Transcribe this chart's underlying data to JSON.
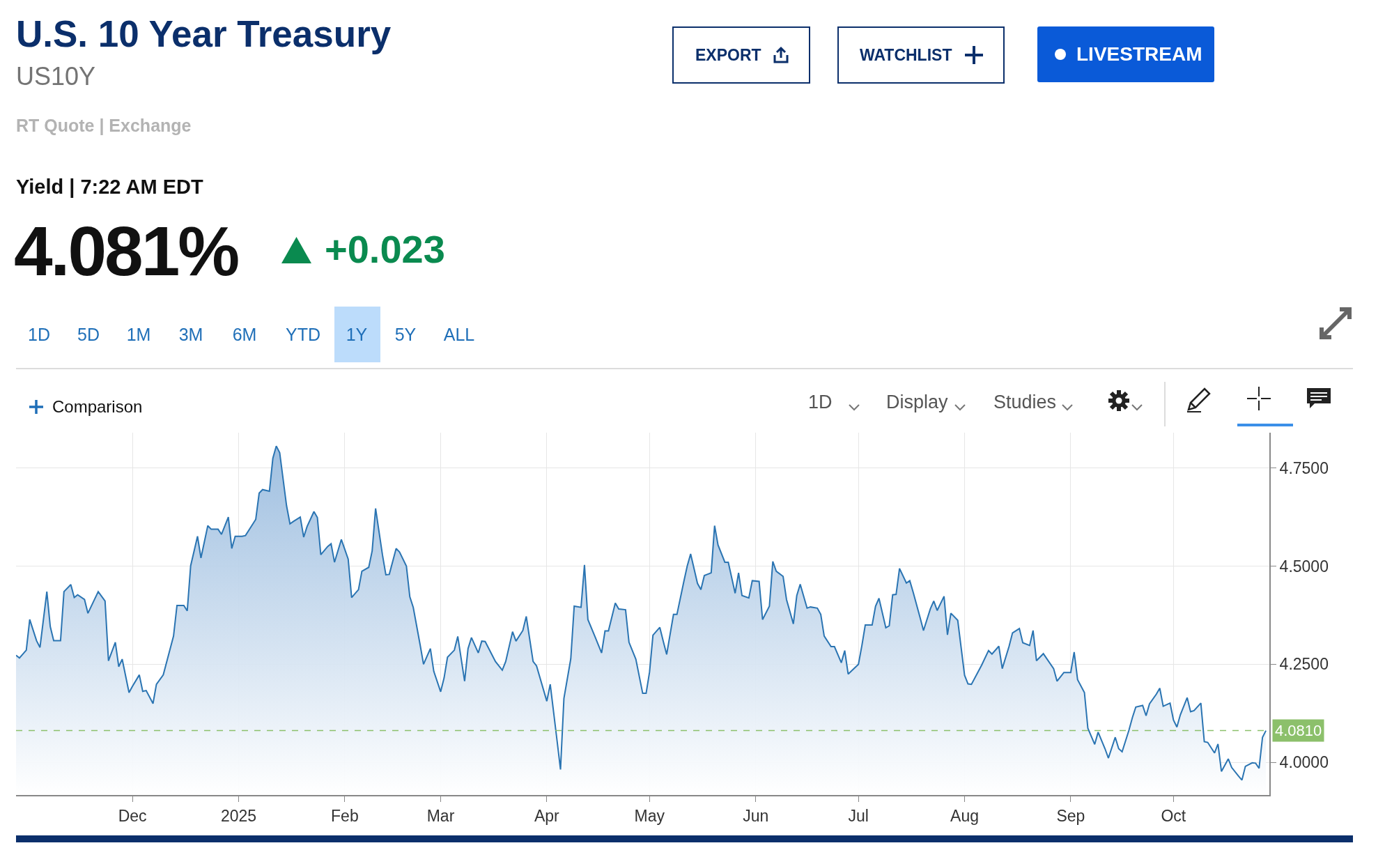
{
  "chart_data": {
    "type": "area",
    "title": "U.S. 10 Year Treasury",
    "subtitle": "US10Y",
    "annotations": [
      "RT Quote | Exchange",
      "Yield | 7:22 AM EDT",
      "4.081%",
      "+0.023",
      "EXPORT",
      "WATCHLIST",
      "LIVESTREAM",
      "1D",
      "5D",
      "1M",
      "3M",
      "6M",
      "YTD",
      "1Y",
      "5Y",
      "ALL",
      "Comparison",
      "1D",
      "Display",
      "Studies"
    ],
    "x": [
      "2024-10-28",
      "2024-10-29",
      "2024-10-31",
      "2024-11-01",
      "2024-11-03",
      "2024-11-04",
      "2024-11-06",
      "2024-11-07",
      "2024-11-08",
      "2024-11-10",
      "2024-11-11",
      "2024-11-13",
      "2024-11-14",
      "2024-11-15",
      "2024-11-17",
      "2024-11-18",
      "2024-11-21",
      "2024-11-23",
      "2024-11-24",
      "2024-11-26",
      "2024-11-27",
      "2024-11-28",
      "2024-11-30",
      "2024-12-01",
      "2024-12-03",
      "2024-12-04",
      "2024-12-05",
      "2024-12-07",
      "2024-12-08",
      "2024-12-10",
      "2024-12-13",
      "2024-12-14",
      "2024-12-16",
      "2024-12-17",
      "2024-12-18",
      "2024-12-20",
      "2024-12-21",
      "2024-12-23",
      "2024-12-24",
      "2024-12-26",
      "2024-12-27",
      "2024-12-29",
      "2024-12-30",
      "2024-12-31",
      "2025-01-02",
      "2025-01-03",
      "2025-01-06",
      "2025-01-07",
      "2025-01-08",
      "2025-01-10",
      "2025-01-11",
      "2025-01-12",
      "2025-01-13",
      "2025-01-15",
      "2025-01-16",
      "2025-01-17",
      "2025-01-19",
      "2025-01-20",
      "2025-01-21",
      "2025-01-23",
      "2025-01-24",
      "2025-01-25",
      "2025-01-27",
      "2025-01-28",
      "2025-01-29",
      "2025-01-31",
      "2025-02-01",
      "2025-02-02",
      "2025-02-03",
      "2025-02-05",
      "2025-02-06",
      "2025-02-08",
      "2025-02-09",
      "2025-02-10",
      "2025-02-12",
      "2025-02-13",
      "2025-02-14",
      "2025-02-16",
      "2025-02-17",
      "2025-02-19",
      "2025-02-20",
      "2025-02-21",
      "2025-02-23",
      "2025-02-24",
      "2025-02-26",
      "2025-02-27",
      "2025-03-01",
      "2025-03-02",
      "2025-03-03",
      "2025-03-05",
      "2025-03-06",
      "2025-03-08",
      "2025-03-09",
      "2025-03-10",
      "2025-03-12",
      "2025-03-13",
      "2025-03-14",
      "2025-03-17",
      "2025-03-19",
      "2025-03-20",
      "2025-03-22",
      "2025-03-23",
      "2025-03-25",
      "2025-03-26",
      "2025-03-28",
      "2025-03-29",
      "2025-04-01",
      "2025-04-02",
      "2025-04-04",
      "2025-04-05",
      "2025-04-06",
      "2025-04-08",
      "2025-04-09",
      "2025-04-11",
      "2025-04-12",
      "2025-04-13",
      "2025-04-15",
      "2025-04-17",
      "2025-04-18",
      "2025-04-19",
      "2025-04-21",
      "2025-04-22",
      "2025-04-24",
      "2025-04-25",
      "2025-04-27",
      "2025-04-29",
      "2025-04-30",
      "2025-05-01",
      "2025-05-02",
      "2025-05-04",
      "2025-05-05",
      "2025-05-06",
      "2025-05-08",
      "2025-05-09",
      "2025-05-11",
      "2025-05-12",
      "2025-05-13",
      "2025-05-15",
      "2025-05-16",
      "2025-05-17",
      "2025-05-19",
      "2025-05-20",
      "2025-05-21",
      "2025-05-23",
      "2025-05-24",
      "2025-05-26",
      "2025-05-27",
      "2025-05-28",
      "2025-05-30",
      "2025-05-31",
      "2025-06-02",
      "2025-06-03",
      "2025-06-05",
      "2025-06-06",
      "2025-06-07",
      "2025-06-09",
      "2025-06-10",
      "2025-06-12",
      "2025-06-13",
      "2025-06-14",
      "2025-06-16",
      "2025-06-17",
      "2025-06-19",
      "2025-06-20",
      "2025-06-21",
      "2025-06-23",
      "2025-06-24",
      "2025-06-26",
      "2025-06-27",
      "2025-06-28",
      "2025-07-01",
      "2025-07-02",
      "2025-07-03",
      "2025-07-05",
      "2025-07-06",
      "2025-07-07",
      "2025-07-09",
      "2025-07-10",
      "2025-07-11",
      "2025-07-12",
      "2025-07-13",
      "2025-07-15",
      "2025-07-16",
      "2025-07-17",
      "2025-07-19",
      "2025-07-20",
      "2025-07-22",
      "2025-07-23",
      "2025-07-24",
      "2025-07-26",
      "2025-07-27",
      "2025-07-28",
      "2025-07-30",
      "2025-08-01",
      "2025-08-02",
      "2025-08-03",
      "2025-08-06",
      "2025-08-08",
      "2025-08-09",
      "2025-08-11",
      "2025-08-12",
      "2025-08-14",
      "2025-08-15",
      "2025-08-17",
      "2025-08-18",
      "2025-08-20",
      "2025-08-21",
      "2025-08-22",
      "2025-08-24",
      "2025-08-27",
      "2025-08-28",
      "2025-08-30",
      "2025-09-01",
      "2025-09-02",
      "2025-09-03",
      "2025-09-05",
      "2025-09-06",
      "2025-09-08",
      "2025-09-09",
      "2025-09-11",
      "2025-09-12",
      "2025-09-14",
      "2025-09-15",
      "2025-09-16",
      "2025-09-18",
      "2025-09-19",
      "2025-09-20",
      "2025-09-22",
      "2025-09-23",
      "2025-09-24",
      "2025-09-26",
      "2025-09-27",
      "2025-09-28",
      "2025-09-30",
      "2025-10-01",
      "2025-10-02",
      "2025-10-03",
      "2025-10-05",
      "2025-10-06",
      "2025-10-07",
      "2025-10-09",
      "2025-10-10",
      "2025-10-11",
      "2025-10-13",
      "2025-10-14",
      "2025-10-15",
      "2025-10-17",
      "2025-10-18",
      "2025-10-20",
      "2025-10-21",
      "2025-10-22",
      "2025-10-24",
      "2025-10-25",
      "2025-10-26",
      "2025-10-27",
      "2025-10-28"
    ],
    "series": [
      {
        "color": "#2a74b2",
        "values": [
          4.273,
          4.266,
          4.286,
          4.364,
          4.31,
          4.293,
          4.435,
          4.346,
          4.31,
          4.31,
          4.435,
          4.453,
          4.42,
          4.427,
          4.415,
          4.38,
          4.435,
          4.411,
          4.259,
          4.306,
          4.244,
          4.263,
          4.178,
          4.194,
          4.223,
          4.181,
          4.183,
          4.15,
          4.199,
          4.223,
          4.322,
          4.4,
          4.4,
          4.386,
          4.501,
          4.576,
          4.521,
          4.603,
          4.594,
          4.594,
          4.581,
          4.625,
          4.545,
          4.576,
          4.576,
          4.578,
          4.619,
          4.686,
          4.695,
          4.691,
          4.775,
          4.806,
          4.789,
          4.654,
          4.608,
          4.614,
          4.625,
          4.574,
          4.601,
          4.639,
          4.624,
          4.529,
          4.55,
          4.557,
          4.51,
          4.568,
          4.543,
          4.518,
          4.42,
          4.44,
          4.487,
          4.497,
          4.539,
          4.647,
          4.529,
          4.478,
          4.479,
          4.545,
          4.536,
          4.5,
          4.422,
          4.395,
          4.3,
          4.25,
          4.29,
          4.232,
          4.18,
          4.215,
          4.268,
          4.286,
          4.321,
          4.207,
          4.29,
          4.318,
          4.279,
          4.309,
          4.308,
          4.257,
          4.235,
          4.257,
          4.333,
          4.309,
          4.336,
          4.372,
          4.257,
          4.246,
          4.156,
          4.199,
          4.055,
          3.982,
          4.163,
          4.264,
          4.398,
          4.395,
          4.503,
          4.364,
          4.322,
          4.279,
          4.335,
          4.335,
          4.406,
          4.391,
          4.389,
          4.306,
          4.263,
          4.176,
          4.176,
          4.23,
          4.324,
          4.344,
          4.309,
          4.275,
          4.377,
          4.377,
          4.46,
          4.5,
          4.531,
          4.456,
          4.44,
          4.476,
          4.483,
          4.603,
          4.554,
          4.51,
          4.51,
          4.431,
          4.483,
          4.425,
          4.419,
          4.463,
          4.461,
          4.364,
          4.398,
          4.512,
          4.487,
          4.474,
          4.415,
          4.353,
          4.425,
          4.454,
          4.393,
          4.396,
          4.393,
          4.377,
          4.322,
          4.295,
          4.295,
          4.254,
          4.285,
          4.225,
          4.25,
          4.297,
          4.35,
          4.35,
          4.398,
          4.418,
          4.343,
          4.348,
          4.427,
          4.428,
          4.494,
          4.457,
          4.463,
          4.433,
          4.369,
          4.336,
          4.391,
          4.411,
          4.387,
          4.423,
          4.325,
          4.38,
          4.362,
          4.222,
          4.2,
          4.199,
          4.248,
          4.285,
          4.276,
          4.296,
          4.239,
          4.296,
          4.33,
          4.341,
          4.305,
          4.298,
          4.336,
          4.259,
          4.277,
          4.239,
          4.207,
          4.229,
          4.229,
          4.281,
          4.211,
          4.178,
          4.087,
          4.046,
          4.077,
          4.035,
          4.011,
          4.064,
          4.035,
          4.027,
          4.082,
          4.114,
          4.141,
          4.145,
          4.119,
          4.149,
          4.174,
          4.189,
          4.143,
          4.151,
          4.108,
          4.09,
          4.121,
          4.165,
          4.129,
          4.132,
          4.151,
          4.053,
          4.051,
          4.024,
          4.047,
          3.977,
          4.009,
          3.987,
          3.965,
          3.955,
          3.99,
          3.999,
          3.998,
          3.985,
          4.064,
          4.081
        ]
      }
    ],
    "xlim": [
      "2024-10-28",
      "2025-10-29"
    ],
    "xticks": [
      {
        "value": "2024-12-01",
        "label": "Dec"
      },
      {
        "value": "2025-01-01",
        "label": "2025"
      },
      {
        "value": "2025-02-01",
        "label": "Feb"
      },
      {
        "value": "2025-03-01",
        "label": "Mar"
      },
      {
        "value": "2025-04-01",
        "label": "Apr"
      },
      {
        "value": "2025-05-01",
        "label": "May"
      },
      {
        "value": "2025-06-01",
        "label": "Jun"
      },
      {
        "value": "2025-07-01",
        "label": "Jul"
      },
      {
        "value": "2025-08-01",
        "label": "Aug"
      },
      {
        "value": "2025-09-01",
        "label": "Sep"
      },
      {
        "value": "2025-10-01",
        "label": "Oct"
      }
    ],
    "ylim": [
      3.917,
      4.84
    ],
    "yticks": [
      {
        "value": 4,
        "label": "4.0000"
      },
      {
        "value": 4.25,
        "label": "4.2500"
      },
      {
        "value": 4.5,
        "label": "4.5000"
      },
      {
        "value": 4.75,
        "label": "4.7500"
      }
    ],
    "ref_lines": [
      {
        "axis": "y",
        "value": 4.081,
        "label": "4.0810",
        "color": "#8cc06b",
        "line_style": "dashed"
      }
    ],
    "grid": true
  }
}
